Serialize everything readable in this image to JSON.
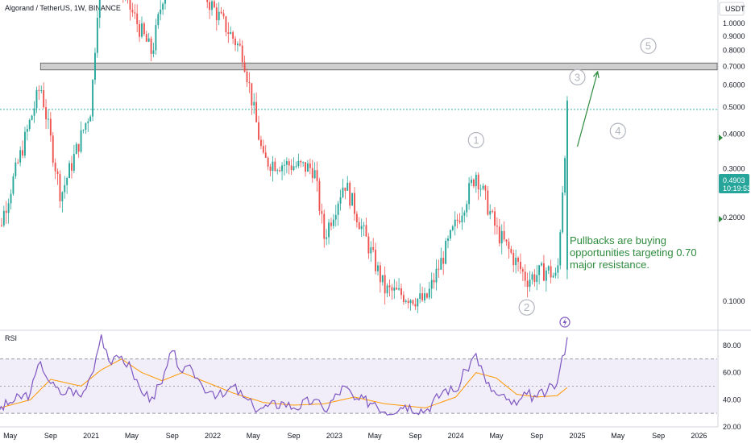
{
  "header": {
    "title": "Algorand / TetherUS, 1W, BINANCE",
    "currency": "USDT"
  },
  "price_badge": {
    "price": "0.4903",
    "countdown": "10:19:53"
  },
  "annotation": {
    "lines": [
      "Pullbacks are buying",
      "opportunities targeting 0.70",
      "major resistance."
    ]
  },
  "rsi_panel": {
    "label": "RSI"
  },
  "colors": {
    "up": "#26a69a",
    "down": "#ef5350",
    "rsi_line": "#7e57c2",
    "rsi_ma": "#ff9800",
    "rsi_band": "#7e57c2",
    "resistance_zone": "#bdbdbd",
    "annotation": "#2e8b3d",
    "price_badge": "#26a69a",
    "wave_label": "#b2b5be"
  },
  "chart_data": [
    {
      "type": "candlestick",
      "title": "Algorand / TetherUS, 1W, BINANCE",
      "y_unit": "USDT",
      "y_scale": "log",
      "ylim": [
        0.08,
        1.1
      ],
      "y_ticks": [
        "1.0000",
        "0.9000",
        "0.8000",
        "0.7000",
        "0.6000",
        "0.5000",
        "0.4000",
        "0.3000",
        "0.2000",
        "0.1000"
      ],
      "x_ticks": [
        "May",
        "Sep",
        "2021",
        "May",
        "Sep",
        "2022",
        "May",
        "Sep",
        "2023",
        "May",
        "Sep",
        "2024",
        "May",
        "Sep",
        "2025",
        "May",
        "Sep",
        "2026"
      ],
      "last_price": 0.4903,
      "resistance_zone": [
        0.68,
        0.72
      ],
      "key_points": [
        {
          "date": "2020-03",
          "price": 0.14
        },
        {
          "date": "2020-08",
          "price": 0.6
        },
        {
          "date": "2020-10",
          "price": 0.24
        },
        {
          "date": "2021-01",
          "price": 0.5
        },
        {
          "date": "2021-02",
          "price": 1.9
        },
        {
          "date": "2021-05",
          "price": 1.1
        },
        {
          "date": "2021-07",
          "price": 0.78
        },
        {
          "date": "2021-09",
          "price": 1.9
        },
        {
          "date": "2021-12",
          "price": 1.3
        },
        {
          "date": "2022-04",
          "price": 0.78
        },
        {
          "date": "2022-06",
          "price": 0.32
        },
        {
          "date": "2022-11",
          "price": 0.3
        },
        {
          "date": "2022-12",
          "price": 0.17
        },
        {
          "date": "2023-02",
          "price": 0.27
        },
        {
          "date": "2023-06",
          "price": 0.11
        },
        {
          "date": "2023-10",
          "price": 0.1
        },
        {
          "date": "2024-03",
          "price": 0.29
        },
        {
          "date": "2024-05",
          "price": 0.18
        },
        {
          "date": "2024-08",
          "price": 0.12
        },
        {
          "date": "2024-10",
          "price": 0.13
        },
        {
          "date": "2024-11",
          "price": 0.12
        },
        {
          "date": "2024-12",
          "price": 0.4903
        }
      ],
      "wave_labels": [
        {
          "label": "1",
          "date": "2024-03",
          "price": 0.38
        },
        {
          "label": "2",
          "date": "2024-08",
          "price": 0.095
        },
        {
          "label": "3",
          "date": "2025-01",
          "price": 0.64
        },
        {
          "label": "4",
          "date": "2025-05",
          "price": 0.41
        },
        {
          "label": "5",
          "date": "2025-08",
          "price": 0.83
        }
      ],
      "projection_arrow": {
        "from": {
          "date": "2025-01",
          "price": 0.36
        },
        "to": {
          "date": "2025-03",
          "price": 0.67
        }
      }
    },
    {
      "type": "line",
      "title": "RSI",
      "ylim": [
        20,
        90
      ],
      "y_ticks": [
        "80.00",
        "60.00",
        "40.00",
        "20.00"
      ],
      "band": [
        30,
        70
      ],
      "mid": 50,
      "series": [
        {
          "role": "rsi",
          "points": [
            {
              "date": "2020-03",
              "value": 28
            },
            {
              "date": "2020-05",
              "value": 38
            },
            {
              "date": "2020-07",
              "value": 45
            },
            {
              "date": "2020-08",
              "value": 68
            },
            {
              "date": "2020-09",
              "value": 52
            },
            {
              "date": "2020-10",
              "value": 44
            },
            {
              "date": "2020-11",
              "value": 48
            },
            {
              "date": "2020-12",
              "value": 42
            },
            {
              "date": "2021-01",
              "value": 58
            },
            {
              "date": "2021-02",
              "value": 88
            },
            {
              "date": "2021-03",
              "value": 66
            },
            {
              "date": "2021-04",
              "value": 72
            },
            {
              "date": "2021-05",
              "value": 62
            },
            {
              "date": "2021-06",
              "value": 45
            },
            {
              "date": "2021-07",
              "value": 42
            },
            {
              "date": "2021-08",
              "value": 52
            },
            {
              "date": "2021-09",
              "value": 76
            },
            {
              "date": "2021-10",
              "value": 60
            },
            {
              "date": "2021-11",
              "value": 62
            },
            {
              "date": "2021-12",
              "value": 50
            },
            {
              "date": "2022-01",
              "value": 46
            },
            {
              "date": "2022-02",
              "value": 42
            },
            {
              "date": "2022-03",
              "value": 50
            },
            {
              "date": "2022-04",
              "value": 42
            },
            {
              "date": "2022-05",
              "value": 35
            },
            {
              "date": "2022-06",
              "value": 34
            },
            {
              "date": "2022-08",
              "value": 38
            },
            {
              "date": "2022-09",
              "value": 34
            },
            {
              "date": "2022-11",
              "value": 40
            },
            {
              "date": "2022-12",
              "value": 32
            },
            {
              "date": "2023-02",
              "value": 50
            },
            {
              "date": "2023-03",
              "value": 40
            },
            {
              "date": "2023-05",
              "value": 38
            },
            {
              "date": "2023-06",
              "value": 31
            },
            {
              "date": "2023-08",
              "value": 36
            },
            {
              "date": "2023-10",
              "value": 32
            },
            {
              "date": "2023-12",
              "value": 48
            },
            {
              "date": "2024-01",
              "value": 46
            },
            {
              "date": "2024-02",
              "value": 62
            },
            {
              "date": "2024-03",
              "value": 74
            },
            {
              "date": "2024-04",
              "value": 52
            },
            {
              "date": "2024-05",
              "value": 44
            },
            {
              "date": "2024-06",
              "value": 40
            },
            {
              "date": "2024-07",
              "value": 36
            },
            {
              "date": "2024-08",
              "value": 44
            },
            {
              "date": "2024-09",
              "value": 42
            },
            {
              "date": "2024-10",
              "value": 46
            },
            {
              "date": "2024-11",
              "value": 52
            },
            {
              "date": "2024-12",
              "value": 86
            }
          ]
        },
        {
          "role": "rsi-ma",
          "points": [
            {
              "date": "2020-03",
              "value": 32
            },
            {
              "date": "2020-07",
              "value": 40
            },
            {
              "date": "2020-09",
              "value": 55
            },
            {
              "date": "2020-12",
              "value": 50
            },
            {
              "date": "2021-02",
              "value": 62
            },
            {
              "date": "2021-04",
              "value": 70
            },
            {
              "date": "2021-06",
              "value": 60
            },
            {
              "date": "2021-08",
              "value": 54
            },
            {
              "date": "2021-10",
              "value": 60
            },
            {
              "date": "2021-12",
              "value": 54
            },
            {
              "date": "2022-03",
              "value": 45
            },
            {
              "date": "2022-06",
              "value": 38
            },
            {
              "date": "2022-09",
              "value": 36
            },
            {
              "date": "2022-12",
              "value": 37
            },
            {
              "date": "2023-03",
              "value": 42
            },
            {
              "date": "2023-06",
              "value": 37
            },
            {
              "date": "2023-10",
              "value": 34
            },
            {
              "date": "2024-01",
              "value": 42
            },
            {
              "date": "2024-03",
              "value": 60
            },
            {
              "date": "2024-05",
              "value": 56
            },
            {
              "date": "2024-07",
              "value": 44
            },
            {
              "date": "2024-09",
              "value": 42
            },
            {
              "date": "2024-11",
              "value": 43
            },
            {
              "date": "2024-12",
              "value": 49
            }
          ]
        }
      ]
    }
  ]
}
